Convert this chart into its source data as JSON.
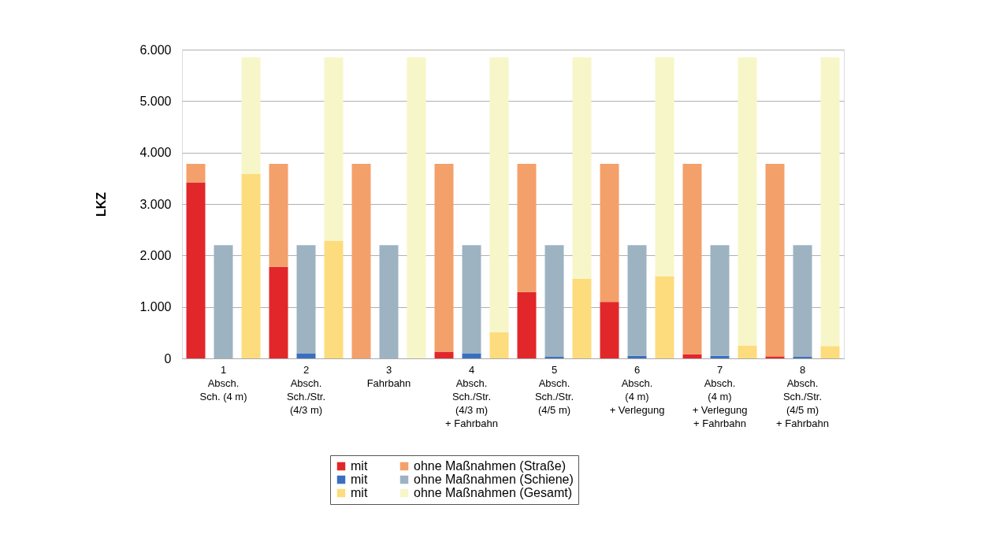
{
  "chart_data": {
    "type": "bar",
    "stacked": true,
    "ylabel": "LKZ",
    "categories": [
      null,
      "1\nAbsch.\nSch. (4 m)",
      null,
      null,
      "2\nAbsch.\nSch./Str.\n(4/3 m)",
      null,
      null,
      "3\nFahrbahn",
      null,
      null,
      "4\nAbsch.\nSch./Str.\n(4/3 m)\n+ Fahrbahn",
      null,
      null,
      "5\nAbsch.\nSch./Str.\n(4/5 m)",
      null,
      null,
      "6\nAbsch.\n(4 m)\n+ Verlegung",
      null,
      null,
      "7\nAbsch.\n(4 m)\n+ Verlegung\n+ Fahrbahn",
      null,
      null,
      "8\nAbsch.\nSch./Str.\n(4/5 m)\n+ Fahrbahn",
      null
    ],
    "series": [
      {
        "name": "mit",
        "color": "#e2272a",
        "values": [
          3420,
          null,
          null,
          1780,
          null,
          null,
          0,
          null,
          null,
          130,
          null,
          null,
          1290,
          null,
          null,
          1100,
          null,
          null,
          80,
          null,
          null,
          40,
          null,
          null
        ]
      },
      {
        "name": "mit",
        "color": "#3a6fbf",
        "values": [
          null,
          0,
          null,
          null,
          100,
          null,
          null,
          0,
          null,
          null,
          100,
          null,
          null,
          30,
          null,
          null,
          50,
          null,
          null,
          50,
          null,
          null,
          30,
          null
        ]
      },
      {
        "name": "mit",
        "color": "#fddc7d",
        "values": [
          null,
          null,
          3580,
          null,
          null,
          2290,
          null,
          null,
          0,
          null,
          null,
          510,
          null,
          null,
          1550,
          null,
          null,
          1590,
          null,
          null,
          250,
          null,
          null,
          240
        ]
      },
      {
        "name": "ohne Maßnahmen (Straße)",
        "color": "#f4a06a",
        "values": [
          360,
          null,
          null,
          2000,
          null,
          null,
          3780,
          null,
          null,
          3650,
          null,
          null,
          2490,
          null,
          null,
          2680,
          null,
          null,
          3700,
          null,
          null,
          3740,
          null,
          null
        ]
      },
      {
        "name": "ohne Maßnahmen (Schiene)",
        "color": "#9db3c2",
        "values": [
          null,
          2200,
          null,
          null,
          2100,
          null,
          null,
          2200,
          null,
          null,
          2100,
          null,
          null,
          2170,
          null,
          null,
          2150,
          null,
          null,
          2150,
          null,
          null,
          2170,
          null
        ]
      },
      {
        "name": "ohne Maßnahmen (Gesamt)",
        "color": "#f7f6c8",
        "values": [
          null,
          null,
          2270,
          null,
          null,
          3560,
          null,
          null,
          5850,
          null,
          null,
          5340,
          null,
          null,
          4300,
          null,
          null,
          4260,
          null,
          null,
          5600,
          null,
          null,
          5610
        ]
      }
    ],
    "ylim": [
      0,
      6000
    ],
    "yticks": [
      0,
      {
        "value": 1000,
        "label": "1.000"
      },
      {
        "value": 2000,
        "label": "2.000"
      },
      {
        "value": 3000,
        "label": "3.000"
      },
      {
        "value": 4000,
        "label": "4.000"
      },
      {
        "value": 5000,
        "label": "5.000"
      },
      {
        "value": 6000,
        "label": "6.000"
      }
    ],
    "grid": "y",
    "legend": "bottom"
  }
}
